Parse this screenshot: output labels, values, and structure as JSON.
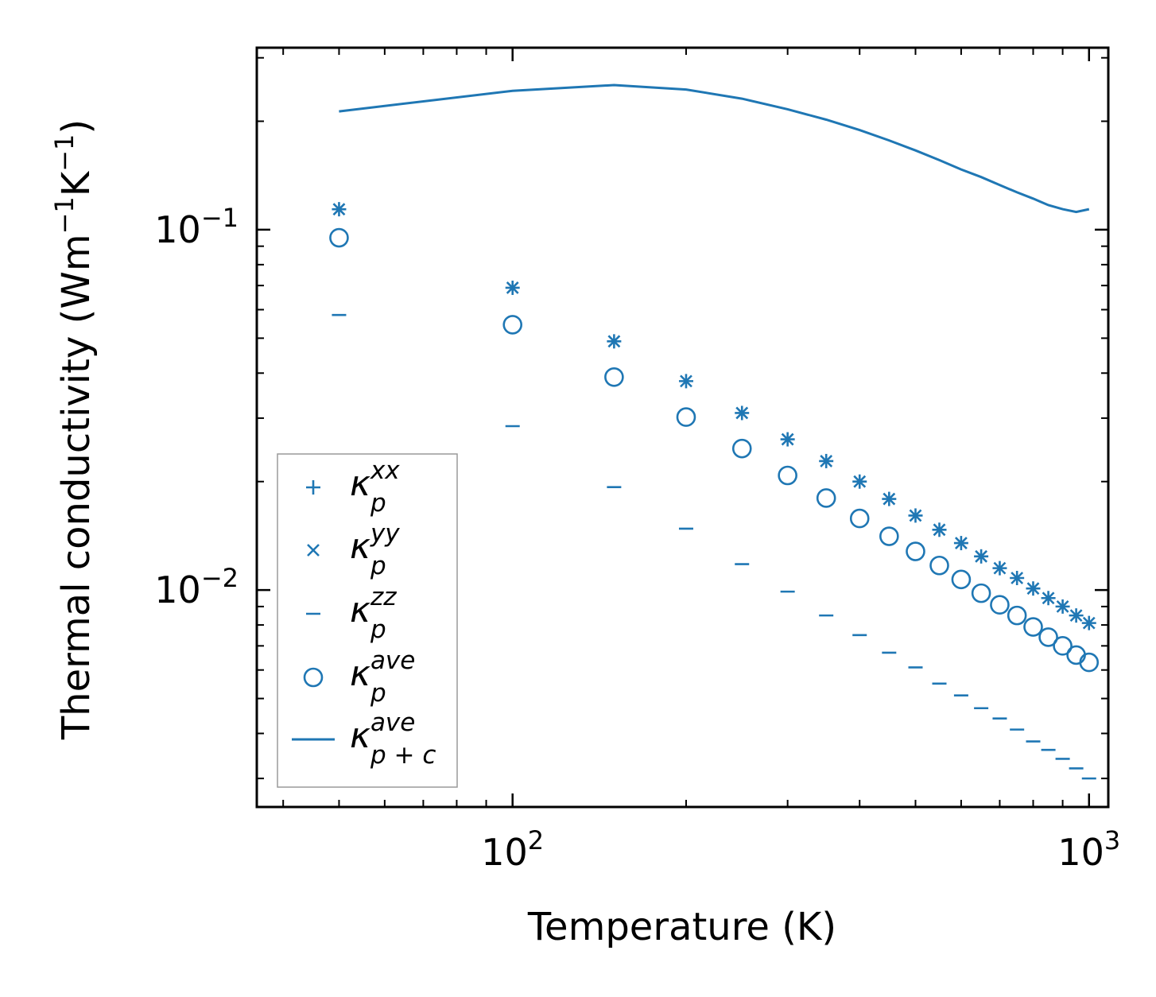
{
  "chart_data": {
    "type": "scatter",
    "xscale": "log",
    "yscale": "log",
    "xlim": [
      36,
      1080
    ],
    "ylim": [
      0.0025,
      0.32
    ],
    "xlabel": "Temperature (K)",
    "ylabel": {
      "base": "Thermal conductivity (Wm",
      "exp1": "−1",
      "mid": "K",
      "exp2": "−1",
      "close": ")"
    },
    "x_ticks": [
      {
        "value": 100,
        "base": "10",
        "exp": "2"
      },
      {
        "value": 1000,
        "base": "10",
        "exp": "3"
      }
    ],
    "y_ticks": [
      {
        "value": 0.1,
        "base": "10",
        "exp": "−1"
      },
      {
        "value": 0.01,
        "base": "10",
        "exp": "−2"
      }
    ],
    "color": "#1f77b4",
    "x": [
      50,
      100,
      150,
      200,
      250,
      300,
      350,
      400,
      450,
      500,
      550,
      600,
      650,
      700,
      750,
      800,
      850,
      900,
      950,
      1000
    ],
    "series": [
      {
        "name": "κ_p^xx",
        "symbol": "κ",
        "sub": "p",
        "sup": "xx",
        "marker": "plus",
        "values": [
          0.114,
          0.069,
          0.049,
          0.038,
          0.031,
          0.0262,
          0.0228,
          0.02,
          0.0179,
          0.0161,
          0.0147,
          0.0135,
          0.0124,
          0.0115,
          0.0108,
          0.0101,
          0.0095,
          0.009,
          0.0085,
          0.0081
        ]
      },
      {
        "name": "κ_p^yy",
        "symbol": "κ",
        "sub": "p",
        "sup": "yy",
        "marker": "x",
        "values": [
          0.114,
          0.069,
          0.049,
          0.038,
          0.031,
          0.0262,
          0.0228,
          0.02,
          0.0179,
          0.0161,
          0.0147,
          0.0135,
          0.0124,
          0.0115,
          0.0108,
          0.0101,
          0.0095,
          0.009,
          0.0085,
          0.0081
        ]
      },
      {
        "name": "κ_p^zz",
        "symbol": "κ",
        "sub": "p",
        "sup": "zz",
        "marker": "hline",
        "values": [
          0.058,
          0.0285,
          0.0193,
          0.0148,
          0.0118,
          0.0099,
          0.0085,
          0.0075,
          0.0067,
          0.0061,
          0.0055,
          0.0051,
          0.0047,
          0.0044,
          0.0041,
          0.0038,
          0.0036,
          0.0034,
          0.0032,
          0.003
        ]
      },
      {
        "name": "κ_p^ave",
        "symbol": "κ",
        "sub": "p",
        "sup": "ave",
        "marker": "circle",
        "values": [
          0.095,
          0.0545,
          0.039,
          0.0302,
          0.0247,
          0.0208,
          0.018,
          0.0158,
          0.0141,
          0.0128,
          0.0117,
          0.0107,
          0.0098,
          0.0091,
          0.0085,
          0.0079,
          0.0074,
          0.007,
          0.0066,
          0.0063
        ]
      },
      {
        "name": "κ_p+c^ave",
        "symbol": "κ",
        "sub": "p + c",
        "sup": "ave",
        "marker": "line",
        "values": [
          0.213,
          0.243,
          0.252,
          0.245,
          0.231,
          0.216,
          0.202,
          0.189,
          0.177,
          0.166,
          0.156,
          0.147,
          0.14,
          0.133,
          0.127,
          0.122,
          0.117,
          0.114,
          0.112,
          0.114
        ]
      }
    ]
  }
}
